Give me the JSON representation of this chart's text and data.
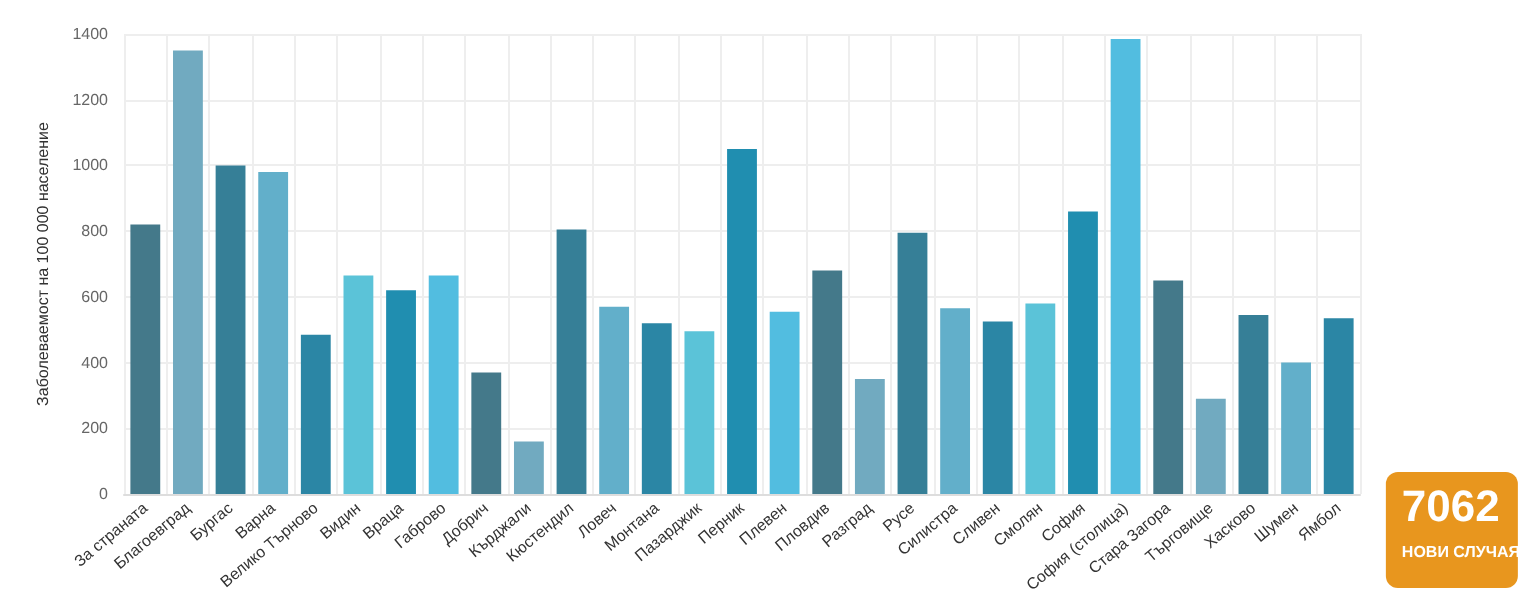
{
  "chart_data": {
    "type": "bar",
    "ylabel": "Заболеваемост на 100 000 население",
    "categories": [
      "За страната",
      "Благоевград",
      "Бургас",
      "Варна",
      "Велико Търново",
      "Видин",
      "Враца",
      "Габрово",
      "Добрич",
      "Кърджали",
      "Кюстендил",
      "Ловеч",
      "Монтана",
      "Пазарджик",
      "Перник",
      "Плевен",
      "Пловдив",
      "Разград",
      "Русе",
      "Силистра",
      "Сливен",
      "Смолян",
      "София",
      "София (столица)",
      "Стара Загора",
      "Търговище",
      "Хасково",
      "Шумен",
      "Ямбол"
    ],
    "values": [
      820,
      1350,
      1000,
      980,
      485,
      665,
      620,
      665,
      370,
      160,
      805,
      570,
      520,
      495,
      1050,
      555,
      680,
      350,
      795,
      565,
      525,
      580,
      860,
      1385,
      650,
      290,
      545,
      400,
      535
    ],
    "colors": [
      "#44798a",
      "#71aac0",
      "#367f97",
      "#62afca",
      "#2b86a5",
      "#5bc3d8",
      "#208eb0",
      "#52bde0",
      "#44798a",
      "#71aac0",
      "#367f97",
      "#62afca",
      "#2b86a5",
      "#5bc3d8",
      "#208eb0",
      "#52bde0",
      "#44798a",
      "#71aac0",
      "#367f97",
      "#62afca",
      "#2b86a5",
      "#5bc3d8",
      "#208eb0",
      "#52bde0",
      "#44798a",
      "#71aac0",
      "#367f97",
      "#62afca",
      "#2b86a5"
    ],
    "ylim": [
      0,
      1400
    ],
    "yticks": [
      0,
      200,
      400,
      600,
      800,
      1000,
      1200,
      1400
    ],
    "grid": true,
    "annotations": [
      "7062",
      "НОВИ СЛУЧАЯ"
    ]
  }
}
